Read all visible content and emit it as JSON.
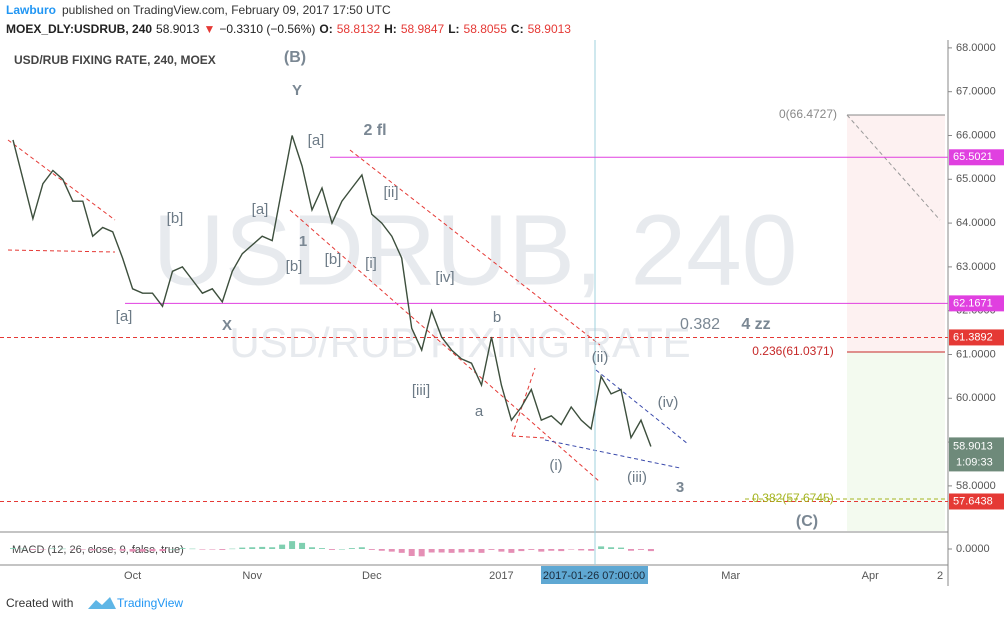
{
  "header": {
    "author": "Lawburo",
    "published": "published on TradingView.com, February 09, 2017 17:50 UTC",
    "quote": [
      {
        "text": "MOEX_DLY:USDRUB, 240",
        "color": "#222222",
        "bold": true
      },
      {
        "text": "58.9013",
        "color": "#222222",
        "bold": false
      },
      {
        "text": "▼",
        "color": "#e53935",
        "bold": false
      },
      {
        "text": "−0.3310 (−0.56%)",
        "color": "#222222",
        "bold": false
      },
      {
        "text": "O:",
        "color": "#222222",
        "bold": true
      },
      {
        "text": "58.8132",
        "color": "#e53935",
        "bold": false
      },
      {
        "text": "H:",
        "color": "#222222",
        "bold": true
      },
      {
        "text": "58.9847",
        "color": "#e53935",
        "bold": false
      },
      {
        "text": "L:",
        "color": "#222222",
        "bold": true
      },
      {
        "text": "58.8055",
        "color": "#e53935",
        "bold": false
      },
      {
        "text": "C:",
        "color": "#222222",
        "bold": true
      },
      {
        "text": "58.9013",
        "color": "#e53935",
        "bold": false
      }
    ]
  },
  "chart_data": {
    "type": "line",
    "title": "USD/RUB FIXING RATE, 240, MOEX",
    "watermark": "USDRUB, 240",
    "watermark_subtitle": "USD/RUB FIXING RATE",
    "color": "#3d4f3d",
    "categories": [
      null,
      null,
      null,
      null,
      null,
      null,
      null,
      null,
      null,
      null,
      null,
      null,
      "Oct",
      null,
      null,
      null,
      null,
      null,
      null,
      null,
      null,
      null,
      null,
      null,
      "Nov",
      null,
      null,
      null,
      null,
      null,
      null,
      null,
      null,
      null,
      null,
      null,
      "Dec",
      null,
      null,
      null,
      null,
      null,
      null,
      null,
      null,
      null,
      null,
      null,
      null,
      "2017",
      null,
      null,
      null,
      null,
      null,
      null,
      null,
      null,
      null,
      null,
      null,
      null,
      null,
      null,
      null,
      null,
      null,
      null,
      null,
      null,
      null,
      null,
      "Mar",
      null,
      null,
      null,
      null,
      null,
      null,
      null,
      null,
      null,
      null,
      null,
      null,
      null,
      "Apr",
      null,
      null,
      null,
      null,
      null,
      null,
      "2"
    ],
    "values": [
      65.9,
      65.0,
      64.1,
      64.9,
      65.2,
      65.0,
      64.5,
      64.5,
      63.7,
      63.9,
      63.8,
      63.2,
      62.5,
      62.4,
      62.4,
      62.1,
      62.9,
      63.0,
      62.7,
      62.4,
      62.5,
      62.2,
      62.9,
      63.3,
      63.5,
      63.7,
      63.6,
      64.8,
      66.0,
      65.3,
      64.3,
      64.8,
      64.0,
      64.5,
      64.8,
      65.1,
      64.2,
      64.0,
      63.7,
      63.2,
      61.6,
      61.1,
      62.0,
      61.4,
      61.1,
      60.9,
      60.8,
      60.3,
      61.4,
      60.3,
      59.5,
      59.8,
      60.2,
      59.5,
      59.6,
      59.4,
      59.8,
      59.5,
      59.3,
      60.5,
      60.1,
      60.2,
      59.1,
      59.5,
      58.9,
      null,
      null,
      null,
      null,
      null,
      null,
      null,
      null,
      null,
      null,
      null,
      null,
      null,
      null,
      null,
      null,
      null,
      null,
      null,
      null,
      null,
      null,
      null,
      null,
      null,
      null,
      null,
      null,
      null
    ],
    "ylim": [
      56.97,
      68.18
    ],
    "yticks": [
      {
        "value": 58,
        "label": "58.0000"
      },
      {
        "value": 59,
        "label": "59.0000"
      },
      {
        "value": 60,
        "label": "60.0000"
      },
      {
        "value": 61,
        "label": "61.0000"
      },
      {
        "value": 62,
        "label": "62.0000"
      },
      {
        "value": 63,
        "label": "63.0000"
      },
      {
        "value": 64,
        "label": "64.0000"
      },
      {
        "value": 65,
        "label": "65.0000"
      },
      {
        "value": 66,
        "label": "66.0000"
      },
      {
        "value": 67,
        "label": "67.0000"
      },
      {
        "value": 68,
        "label": "68.0000"
      }
    ],
    "levels": [
      {
        "value": 65.5021,
        "color": "#e040e0",
        "style": "solid"
      },
      {
        "value": 62.1671,
        "color": "#e040e0",
        "style": "solid"
      },
      {
        "value": 61.3892,
        "color": "#e53935",
        "style": "dashed"
      },
      {
        "value": 57.6438,
        "color": "#e53935",
        "style": "dashed"
      }
    ],
    "last_price": 58.9013,
    "countdown": "1:09:33",
    "crosshair_label": "2017-01-26 07:00:00",
    "annotations": [
      "(B)",
      "Y",
      "[a]",
      "2 fl",
      "[a]",
      "[b]",
      "[ii]",
      "1",
      "[b]",
      "[b]",
      "[i]",
      "[a]",
      "X",
      "[iv]",
      "0.382",
      "4 zz",
      "b",
      "[iii]",
      "(ii)",
      "(iv)",
      "a",
      "(i)",
      "(iii)",
      "3",
      "(C)",
      "0(66.4727)",
      "0.236(61.0371)",
      "0.382(57.6745)"
    ],
    "macd": {
      "label": "MACD (12, 26, close, 9, false, true)",
      "ylim": [
        -0.8,
        0.8
      ],
      "yticks": [
        {
          "value": 0,
          "label": "0.0000"
        }
      ],
      "values": [
        0.05,
        0.02,
        -0.05,
        -0.02,
        0.03,
        0.02,
        -0.02,
        -0.03,
        -0.08,
        -0.06,
        -0.05,
        -0.1,
        -0.15,
        -0.15,
        -0.12,
        -0.12,
        0,
        0.05,
        0.02,
        -0.03,
        -0.02,
        -0.05,
        0.02,
        0.08,
        0.1,
        0.12,
        0.1,
        0.25,
        0.45,
        0.35,
        0.1,
        0.05,
        -0.05,
        0,
        0.05,
        0.1,
        -0.05,
        -0.1,
        -0.15,
        -0.22,
        -0.4,
        -0.42,
        -0.2,
        -0.2,
        -0.22,
        -0.2,
        -0.18,
        -0.22,
        -0.05,
        -0.15,
        -0.22,
        -0.12,
        -0.05,
        -0.15,
        -0.1,
        -0.12,
        -0.03,
        -0.08,
        -0.1,
        0.15,
        0.1,
        0.08,
        -0.1,
        -0.05,
        -0.12,
        null,
        null,
        null,
        null,
        null,
        null,
        null,
        null,
        null,
        null,
        null,
        null,
        null,
        null,
        null,
        null,
        null,
        null,
        null,
        null,
        null,
        null,
        null,
        null,
        null,
        null,
        null,
        null,
        null
      ]
    }
  },
  "footer": {
    "created": "Created with",
    "brand": "TradingView"
  }
}
